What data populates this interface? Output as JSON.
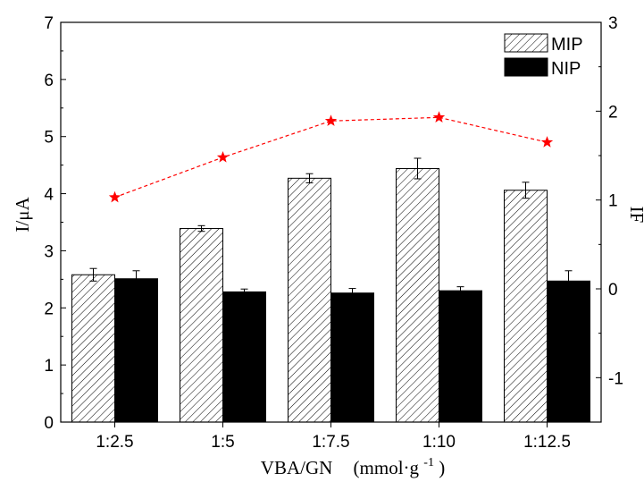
{
  "chart_data": {
    "type": "bar",
    "categories": [
      "1:2.5",
      "1:5",
      "1:7.5",
      "1:10",
      "1:12.5"
    ],
    "series": [
      {
        "name": "MIP",
        "values": [
          2.58,
          3.39,
          4.27,
          4.44,
          4.06
        ],
        "errors": [
          0.11,
          0.05,
          0.08,
          0.18,
          0.14
        ],
        "pattern": "hatched"
      },
      {
        "name": "NIP",
        "values": [
          2.51,
          2.28,
          2.26,
          2.3,
          2.47
        ],
        "errors": [
          0.14,
          0.05,
          0.08,
          0.07,
          0.18
        ],
        "color": "#000000"
      }
    ],
    "line_series": {
      "name": "IF",
      "axis": "right",
      "values": [
        1.03,
        1.48,
        1.89,
        1.93,
        1.65
      ],
      "color": "#ff0000",
      "marker": "star",
      "linestyle": "dashed"
    },
    "xlabel_main": "VBA/GN",
    "xlabel_unit_prefix": "(mmol·g",
    "xlabel_unit_exp": "-1",
    "xlabel_unit_suffix": ")",
    "ylabel": "I/μA",
    "y2label": "IF",
    "ylim": [
      0,
      7
    ],
    "yticks": [
      "0",
      "1",
      "2",
      "3",
      "4",
      "5",
      "6",
      "7"
    ],
    "y2lim": [
      -1.5,
      3
    ],
    "y2ticks": [
      "-1",
      "0",
      "1",
      "2",
      "3"
    ],
    "legend_position": "top-right"
  }
}
